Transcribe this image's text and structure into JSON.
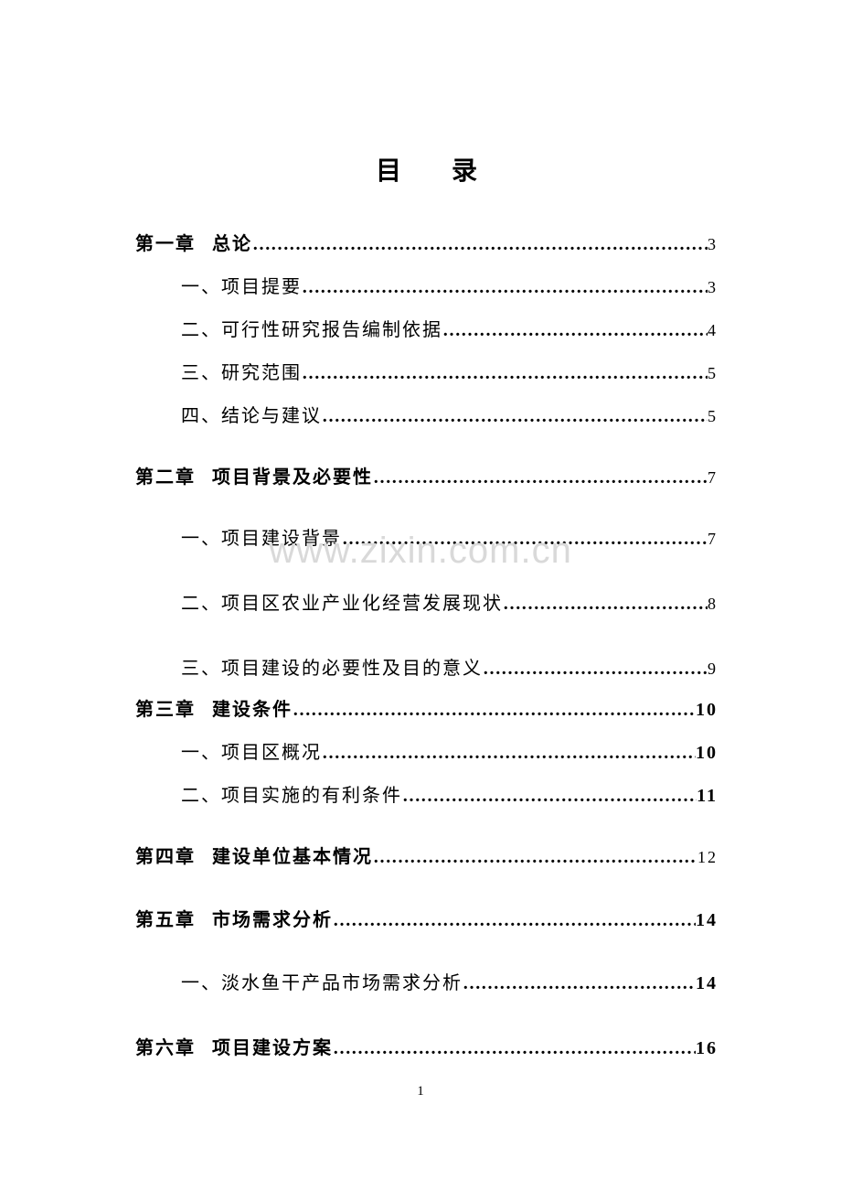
{
  "title": "目录",
  "watermark": "www.zixin.com.cn",
  "footer_page": "1",
  "dots_fill": "…………………………………………………………………………………………",
  "entries": [
    {
      "level": "chapter",
      "class": "chapter-entry",
      "prefix": "第一章",
      "text": "总论",
      "page": "3",
      "page_bold": false
    },
    {
      "level": "sub",
      "class": "sub-entry",
      "prefix": "",
      "text": "一、项目提要",
      "page": "3",
      "page_bold": false
    },
    {
      "level": "sub",
      "class": "sub-entry",
      "prefix": "",
      "text": "二、可行性研究报告编制依据",
      "page": "4",
      "page_bold": false
    },
    {
      "level": "sub",
      "class": "sub-entry",
      "prefix": "",
      "text": "三、研究范围",
      "page": "5",
      "page_bold": false
    },
    {
      "level": "sub",
      "class": "sub-entry",
      "prefix": "",
      "text": "四、结论与建议",
      "page": "5",
      "page_bold": false
    },
    {
      "level": "chapter",
      "class": "chapter-entry-spaced",
      "prefix": "第二章",
      "text": "项目背景及必要性",
      "page": "7",
      "page_bold": false
    },
    {
      "level": "sub",
      "class": "sub-entry-spaced",
      "prefix": "",
      "text": "一、项目建设背景",
      "page": "7",
      "page_bold": false
    },
    {
      "level": "sub",
      "class": "sub-entry-spaced",
      "prefix": "",
      "text": "二、项目区农业产业化经营发展现状",
      "page": "8",
      "page_bold": false
    },
    {
      "level": "sub",
      "class": "sub-entry-last-in-group",
      "prefix": "",
      "text": "三、项目建设的必要性及目的意义",
      "page": "9",
      "page_bold": false
    },
    {
      "level": "chapter",
      "class": "chapter-entry-tight-above",
      "prefix": "第三章",
      "text": "建设条件",
      "page": "10",
      "page_bold": true
    },
    {
      "level": "sub",
      "class": "sub-entry",
      "prefix": "",
      "text": "一、项目区概况",
      "page": "10",
      "page_bold": true
    },
    {
      "level": "sub",
      "class": "sub-entry",
      "prefix": "",
      "text": "二、项目实施的有利条件",
      "page": "11",
      "page_bold": true
    },
    {
      "level": "chapter",
      "class": "chapter-entry-spaced",
      "prefix": "第四章",
      "text": "建设单位基本情况",
      "page": "12",
      "page_bold": false
    },
    {
      "level": "chapter",
      "class": "chapter-entry-more-spaced",
      "prefix": "第五章",
      "text": "市场需求分析",
      "page": "14",
      "page_bold": true
    },
    {
      "level": "sub",
      "class": "sub-entry-spaced",
      "prefix": "",
      "text": "一、淡水鱼干产品市场需求分析",
      "page": "14",
      "page_bold": true
    },
    {
      "level": "chapter",
      "class": "chapter-entry",
      "prefix": "第六章",
      "text": "项目建设方案",
      "page": "16",
      "page_bold": true
    }
  ]
}
